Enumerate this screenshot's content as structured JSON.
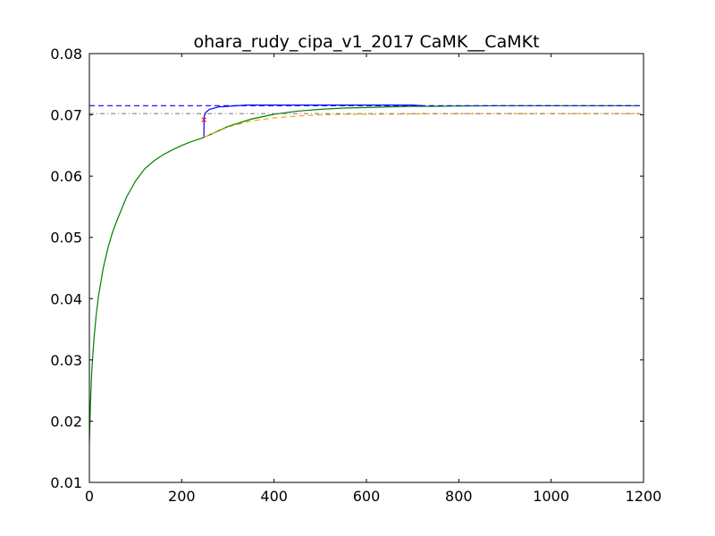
{
  "chart_data": {
    "type": "line",
    "title": "ohara_rudy_cipa_v1_2017 CaMK__CaMKt",
    "xlabel": "",
    "ylabel": "",
    "xlim": [
      0,
      1200
    ],
    "ylim": [
      0.01,
      0.08
    ],
    "xticks": [
      "0",
      "200",
      "400",
      "600",
      "800",
      "1000",
      "1200"
    ],
    "yticks": [
      "0.01",
      "0.02",
      "0.03",
      "0.04",
      "0.05",
      "0.06",
      "0.07",
      "0.08"
    ],
    "grid": false,
    "legend": "none",
    "series": [
      {
        "color": "#008000",
        "style": "solid",
        "x": [
          0,
          2,
          5,
          10,
          15,
          20,
          30,
          40,
          50,
          60,
          80,
          100,
          120,
          140,
          160,
          180,
          200,
          220,
          248,
          300,
          350,
          400,
          450,
          500,
          550,
          600,
          650,
          700,
          750,
          800,
          900,
          1000,
          1100,
          1190
        ],
        "y": [
          0.0165,
          0.022,
          0.028,
          0.0335,
          0.0375,
          0.0405,
          0.045,
          0.0482,
          0.0508,
          0.0528,
          0.0565,
          0.0592,
          0.0612,
          0.0625,
          0.0635,
          0.0643,
          0.065,
          0.0656,
          0.0663,
          0.0681,
          0.0693,
          0.0701,
          0.0706,
          0.0709,
          0.0711,
          0.0712,
          0.0713,
          0.0714,
          0.0714,
          0.07145,
          0.0715,
          0.0715,
          0.0715,
          0.0715
        ]
      },
      {
        "color": "#0000ff",
        "style": "solid",
        "x": [
          248,
          248.5,
          252,
          260,
          280,
          300,
          340,
          400,
          500,
          600,
          700,
          722
        ],
        "y": [
          0.0663,
          0.0697,
          0.0704,
          0.0709,
          0.0713,
          0.0714,
          0.0716,
          0.0716,
          0.0716,
          0.0716,
          0.0716,
          0.0715
        ]
      },
      {
        "color": "#ffa500",
        "style": "dashed",
        "x": [
          248,
          300,
          350,
          400,
          450,
          500,
          550,
          600,
          700,
          800,
          900,
          1000,
          1100,
          1190
        ],
        "y": [
          0.0663,
          0.068,
          0.069,
          0.0695,
          0.0698,
          0.07,
          0.0701,
          0.0701,
          0.07015,
          0.0702,
          0.0702,
          0.0702,
          0.0702,
          0.0702
        ]
      },
      {
        "color": "#0000ff",
        "style": "dashed",
        "x": [
          0,
          1200
        ],
        "y": [
          0.0715,
          0.0715
        ]
      },
      {
        "color": "#808080",
        "style": "dashdot",
        "x": [
          0,
          1200
        ],
        "y": [
          0.0702,
          0.0702
        ]
      }
    ],
    "markers": [
      {
        "x": 248,
        "y": 0.0692,
        "symbol": "x",
        "color": "#ff0000"
      }
    ]
  }
}
